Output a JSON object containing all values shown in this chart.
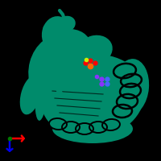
{
  "background_color": "#000000",
  "protein_color": "#008B6B",
  "axis_x_color": "#FF0000",
  "axis_y_color": "#0000EE",
  "axis_origin_color": "#007700",
  "figsize": [
    2.0,
    2.0
  ],
  "dpi": 100,
  "ligand1_color": "#FF6600",
  "ligand2_color": "#FF0000",
  "ligand3_color": "#CCEE00",
  "ligand4_color": "#8833FF",
  "ligand5_color": "#4466FF"
}
